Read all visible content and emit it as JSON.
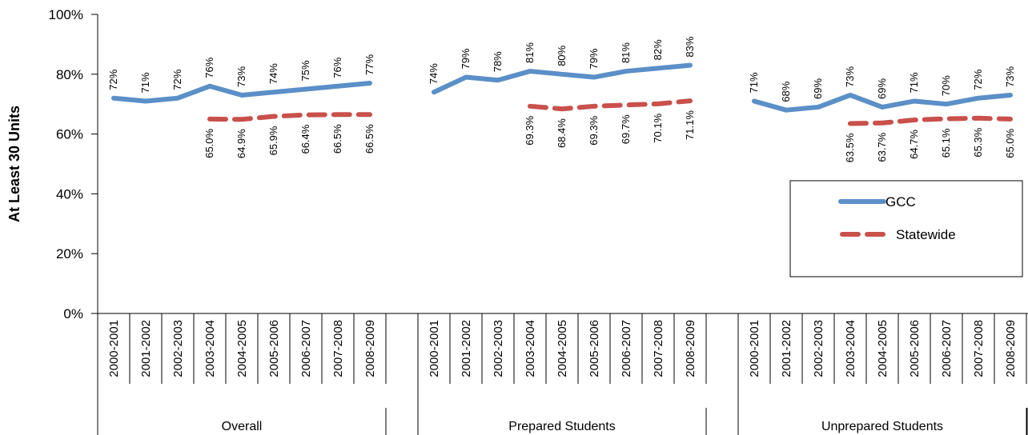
{
  "chart_data": {
    "type": "line",
    "ylabel": "At Least 30 Units",
    "ylim": [
      0,
      100
    ],
    "y_ticks": [
      "0%",
      "20%",
      "40%",
      "60%",
      "80%",
      "100%"
    ],
    "groups": [
      {
        "name": "Overall",
        "categories": [
          "2000-2001",
          "2001-2002",
          "2002-2003",
          "2003-2004",
          "2004-2005",
          "2005-2006",
          "2006-2007",
          "2007-2008",
          "2008-2009"
        ],
        "gcc": [
          72,
          71,
          72,
          76,
          73,
          74,
          75,
          76,
          77
        ],
        "gcc_labels": [
          "72%",
          "71%",
          "72%",
          "76%",
          "73%",
          "74%",
          "75%",
          "76%",
          "77%"
        ],
        "statewide": [
          null,
          null,
          null,
          65.0,
          64.9,
          65.9,
          66.4,
          66.5,
          66.5
        ],
        "statewide_labels": [
          null,
          null,
          null,
          "65.0%",
          "64.9%",
          "65.9%",
          "66.4%",
          "66.5%",
          "66.5%"
        ]
      },
      {
        "name": "Prepared Students",
        "categories": [
          "2000-2001",
          "2001-2002",
          "2002-2003",
          "2003-2004",
          "2004-2005",
          "2005-2006",
          "2006-2007",
          "2007-2008",
          "2008-2009"
        ],
        "gcc": [
          74,
          79,
          78,
          81,
          80,
          79,
          81,
          82,
          83
        ],
        "gcc_labels": [
          "74%",
          "79%",
          "78%",
          "81%",
          "80%",
          "79%",
          "81%",
          "82%",
          "83%"
        ],
        "statewide": [
          null,
          null,
          null,
          69.3,
          68.4,
          69.3,
          69.7,
          70.1,
          71.1
        ],
        "statewide_labels": [
          null,
          null,
          null,
          "69.3%",
          "68.4%",
          "69.3%",
          "69.7%",
          "70.1%",
          "71.1%"
        ]
      },
      {
        "name": "Unprepared Students",
        "categories": [
          "2000-2001",
          "2001-2002",
          "2002-2003",
          "2003-2004",
          "2004-2005",
          "2005-2006",
          "2006-2007",
          "2007-2008",
          "2008-2009"
        ],
        "gcc": [
          71,
          68,
          69,
          73,
          69,
          71,
          70,
          72,
          73
        ],
        "gcc_labels": [
          "71%",
          "68%",
          "69%",
          "73%",
          "69%",
          "71%",
          "70%",
          "72%",
          "73%"
        ],
        "statewide": [
          null,
          null,
          null,
          63.5,
          63.7,
          64.7,
          65.1,
          65.3,
          65.0
        ],
        "statewide_labels": [
          null,
          null,
          null,
          "63.5%",
          "63.7%",
          "64.7%",
          "65.1%",
          "65.3%",
          "65.0%"
        ]
      }
    ],
    "legend": {
      "position": "right",
      "items": [
        {
          "name": "GCC",
          "color": "#5b8fc7",
          "style": "solid"
        },
        {
          "name": "Statewide",
          "color": "#c9504b",
          "style": "dashed"
        }
      ]
    }
  }
}
